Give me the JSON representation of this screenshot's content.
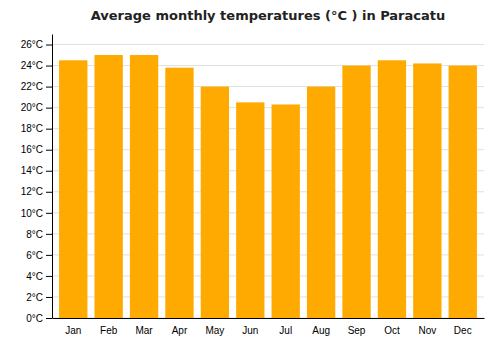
{
  "chart_data": {
    "type": "bar",
    "title": "Average monthly temperatures (°C ) in Paracatu",
    "categories": [
      "Jan",
      "Feb",
      "Mar",
      "Apr",
      "May",
      "Jun",
      "Jul",
      "Aug",
      "Sep",
      "Oct",
      "Nov",
      "Dec"
    ],
    "values": [
      24.5,
      25.0,
      25.0,
      23.8,
      22.0,
      20.5,
      20.3,
      22.0,
      24.0,
      24.5,
      24.2,
      24.0
    ],
    "color": "#FFAA00",
    "ylim": [
      0,
      27
    ],
    "yticks": [
      {
        "value": 0,
        "label": "0°C"
      },
      {
        "value": 2,
        "label": "2°C"
      },
      {
        "value": 4,
        "label": "4°C"
      },
      {
        "value": 6,
        "label": "6°C"
      },
      {
        "value": 8,
        "label": "8°C"
      },
      {
        "value": 10,
        "label": "10°C"
      },
      {
        "value": 12,
        "label": "12°C"
      },
      {
        "value": 14,
        "label": "14°C"
      },
      {
        "value": 16,
        "label": "16°C"
      },
      {
        "value": 18,
        "label": "18°C"
      },
      {
        "value": 20,
        "label": "20°C"
      },
      {
        "value": 22,
        "label": "22°C"
      },
      {
        "value": 24,
        "label": "24°C"
      },
      {
        "value": 26,
        "label": "26°C"
      }
    ],
    "grid": true
  }
}
